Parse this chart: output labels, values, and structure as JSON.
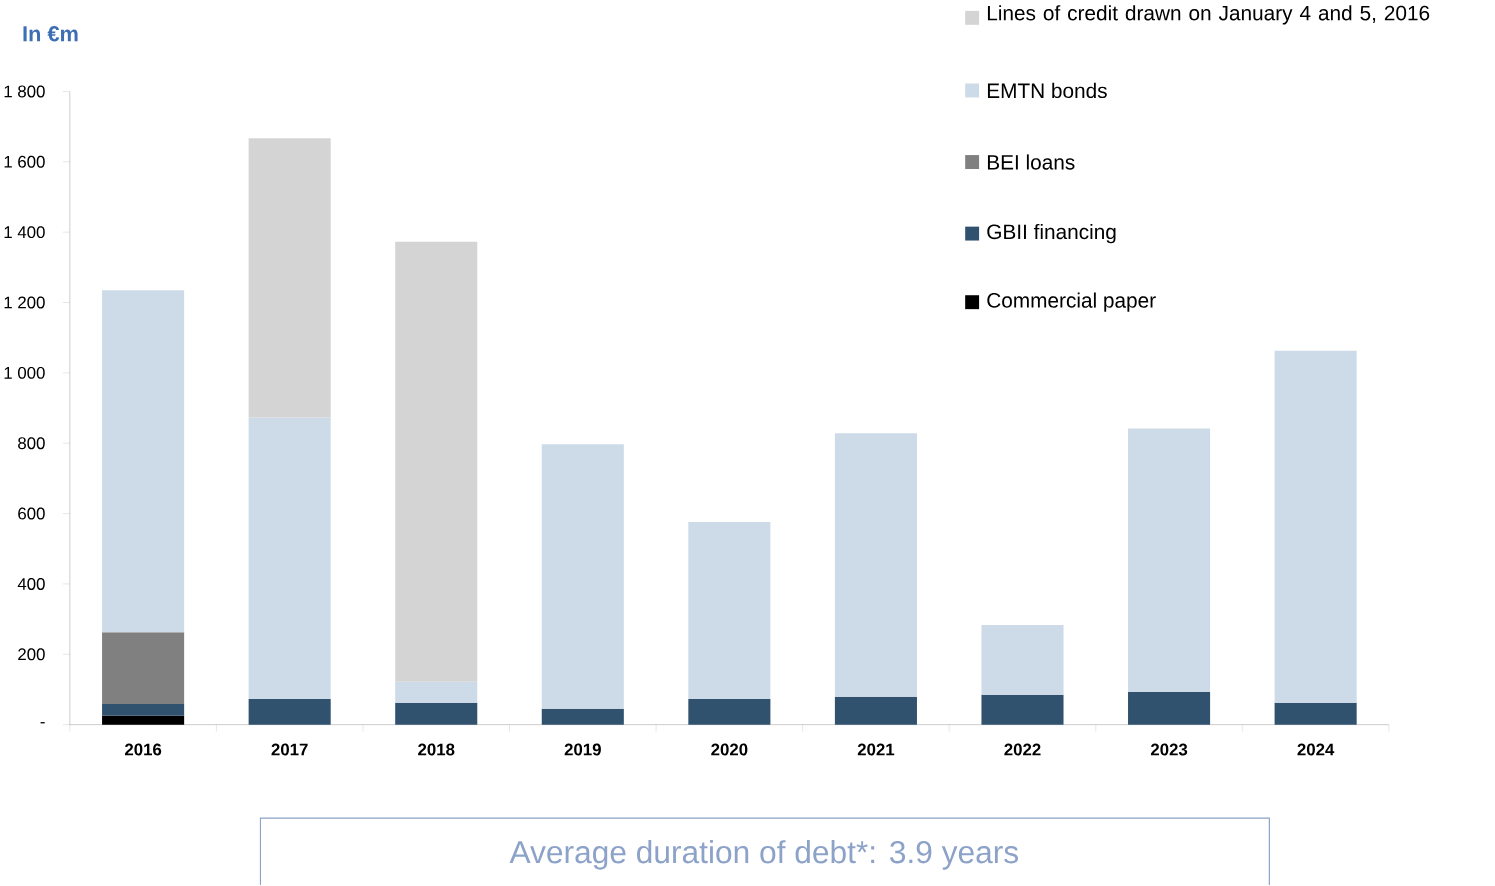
{
  "chart_data": {
    "type": "bar",
    "stacked": true,
    "ylabel": "In €m",
    "categories": [
      "2016",
      "2017",
      "2018",
      "2019",
      "2020",
      "2021",
      "2022",
      "2023",
      "2024"
    ],
    "series": [
      {
        "name": "Commercial paper",
        "color": "#000000",
        "values": [
          25,
          null,
          null,
          null,
          null,
          null,
          null,
          null,
          null
        ]
      },
      {
        "name": "GBII financing",
        "color": "#31526f",
        "values": [
          34,
          73,
          62,
          45,
          73,
          79,
          85,
          93,
          62
        ]
      },
      {
        "name": "BEI loans",
        "color": "#808080",
        "values": [
          204,
          null,
          null,
          null,
          null,
          null,
          null,
          null,
          null
        ]
      },
      {
        "name": "EMTN bonds",
        "color": "#cddbe8",
        "values": [
          972,
          800,
          60,
          752,
          503,
          749,
          198,
          749,
          1001
        ]
      },
      {
        "name": "Lines of credit drawn on January 4 and 5, 2016",
        "color": "#d4d4d4",
        "values": [
          null,
          794,
          1251,
          null,
          null,
          null,
          null,
          null,
          null
        ]
      }
    ],
    "ylim": [
      0,
      1800
    ],
    "yticks": [
      {
        "value": 0,
        "label": "-"
      },
      200,
      400,
      600,
      800,
      {
        "value": 1000,
        "label": "1 000"
      },
      {
        "value": 1200,
        "label": "1 200"
      },
      {
        "value": 1400,
        "label": "1 400"
      },
      {
        "value": 1600,
        "label": "1 600"
      },
      {
        "value": 1800,
        "label": "1 800"
      }
    ],
    "legend": "top right",
    "annotations": [
      "Average duration of debt*: 3.9 years"
    ]
  }
}
